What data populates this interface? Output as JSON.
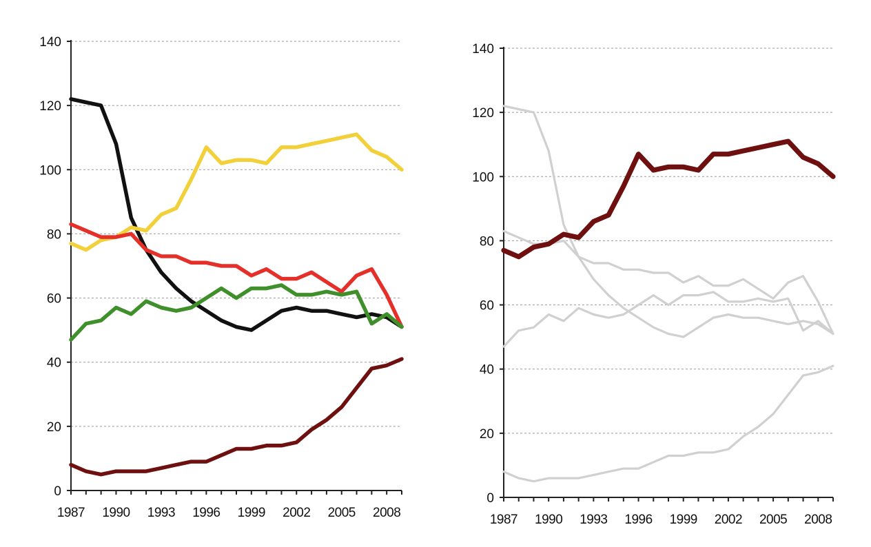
{
  "chart_data": [
    {
      "type": "line",
      "title": "",
      "xlabel": "",
      "ylabel": "",
      "xlim": [
        1987,
        2009
      ],
      "ylim": [
        0,
        140
      ],
      "grid": true,
      "y_ticks": [
        "0",
        "20",
        "40",
        "60",
        "80",
        "100",
        "120",
        "140"
      ],
      "x_ticks": [
        "1987",
        "1990",
        "1993",
        "1996",
        "1999",
        "2002",
        "2005",
        "2008"
      ],
      "x": [
        1987,
        1988,
        1989,
        1990,
        1991,
        1992,
        1993,
        1994,
        1995,
        1996,
        1997,
        1998,
        1999,
        2000,
        2001,
        2002,
        2003,
        2004,
        2005,
        2006,
        2007,
        2008,
        2009
      ],
      "series": [
        {
          "color": "#111111",
          "values": [
            122,
            121,
            120,
            108,
            85,
            75,
            68,
            63,
            59,
            56,
            53,
            51,
            50,
            53,
            56,
            57,
            56,
            56,
            55,
            54,
            55,
            54,
            51
          ]
        },
        {
          "color": "#f2d03a",
          "values": [
            77,
            75,
            78,
            79,
            82,
            81,
            86,
            88,
            97,
            107,
            102,
            103,
            103,
            102,
            107,
            107,
            108,
            109,
            110,
            111,
            106,
            104,
            100
          ]
        },
        {
          "color": "#e5302a",
          "values": [
            83,
            81,
            79,
            79,
            80,
            75,
            73,
            73,
            71,
            71,
            70,
            70,
            67,
            69,
            66,
            66,
            68,
            65,
            62,
            67,
            69,
            61,
            51
          ]
        },
        {
          "color": "#3f8f2a",
          "values": [
            47,
            52,
            53,
            57,
            55,
            59,
            57,
            56,
            57,
            60,
            63,
            60,
            63,
            63,
            64,
            61,
            61,
            62,
            61,
            62,
            52,
            55,
            51
          ]
        },
        {
          "color": "#6e1010",
          "values": [
            8,
            6,
            5,
            6,
            6,
            6,
            7,
            8,
            9,
            9,
            11,
            13,
            13,
            14,
            14,
            15,
            19,
            22,
            26,
            32,
            38,
            39,
            41
          ]
        }
      ]
    },
    {
      "type": "line",
      "title": "",
      "xlabel": "",
      "ylabel": "",
      "xlim": [
        1987,
        2009
      ],
      "ylim": [
        0,
        140
      ],
      "grid": true,
      "y_ticks": [
        "0",
        "20",
        "40",
        "60",
        "80",
        "100",
        "120",
        "140"
      ],
      "x_ticks": [
        "1987",
        "1990",
        "1993",
        "1996",
        "1999",
        "2002",
        "2005",
        "2008"
      ],
      "x": [
        1987,
        1988,
        1989,
        1990,
        1991,
        1992,
        1993,
        1994,
        1995,
        1996,
        1997,
        1998,
        1999,
        2000,
        2001,
        2002,
        2003,
        2004,
        2005,
        2006,
        2007,
        2008,
        2009
      ],
      "highlight_color": "#6e1010",
      "muted_color": "#d0d0d0",
      "series": [
        {
          "highlighted": false,
          "values": [
            122,
            121,
            120,
            108,
            85,
            75,
            68,
            63,
            59,
            56,
            53,
            51,
            50,
            53,
            56,
            57,
            56,
            56,
            55,
            54,
            55,
            54,
            51
          ]
        },
        {
          "highlighted": false,
          "values": [
            83,
            81,
            79,
            79,
            80,
            75,
            73,
            73,
            71,
            71,
            70,
            70,
            67,
            69,
            66,
            66,
            68,
            65,
            62,
            67,
            69,
            61,
            51
          ]
        },
        {
          "highlighted": false,
          "values": [
            47,
            52,
            53,
            57,
            55,
            59,
            57,
            56,
            57,
            60,
            63,
            60,
            63,
            63,
            64,
            61,
            61,
            62,
            61,
            62,
            52,
            55,
            51
          ]
        },
        {
          "highlighted": false,
          "values": [
            8,
            6,
            5,
            6,
            6,
            6,
            7,
            8,
            9,
            9,
            11,
            13,
            13,
            14,
            14,
            15,
            19,
            22,
            26,
            32,
            38,
            39,
            41
          ]
        },
        {
          "highlighted": true,
          "values": [
            77,
            75,
            78,
            79,
            82,
            81,
            86,
            88,
            97,
            107,
            102,
            103,
            103,
            102,
            107,
            107,
            108,
            109,
            110,
            111,
            106,
            104,
            100
          ]
        }
      ]
    }
  ]
}
